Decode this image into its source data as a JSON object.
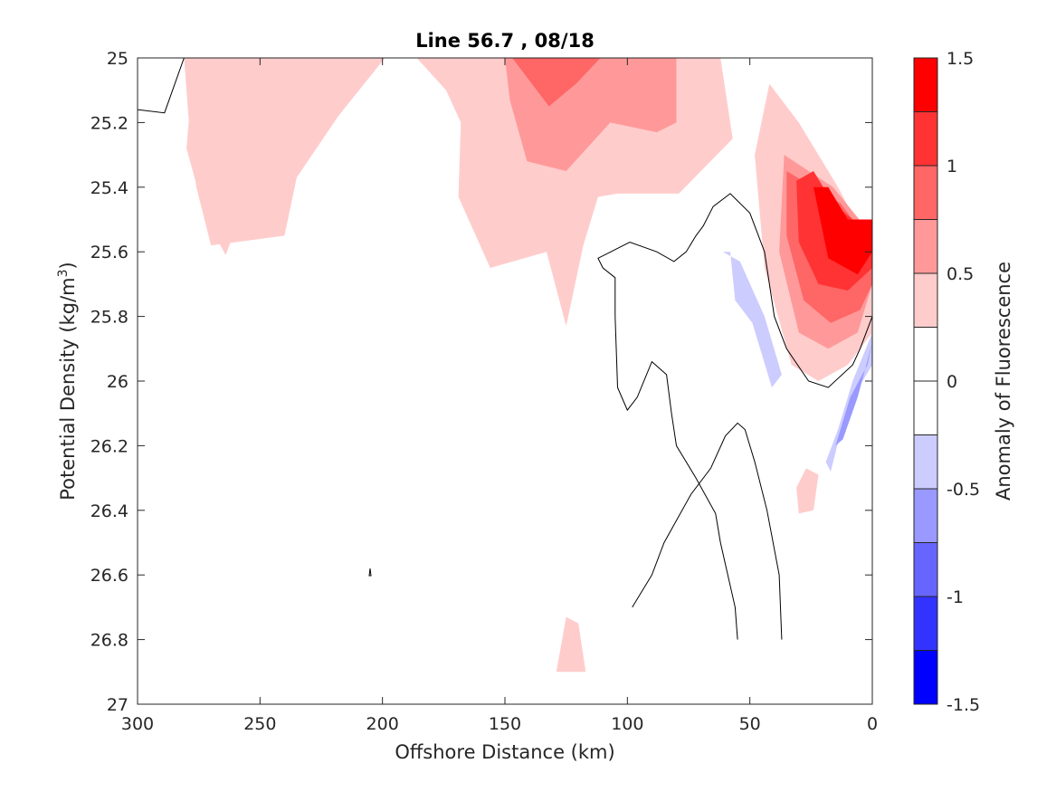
{
  "chart_data": {
    "type": "contour",
    "title": "Line 56.7 , 08/18",
    "xlabel": "Offshore Distance (km)",
    "ylabel_prefix": "Potential Density (kg/m",
    "ylabel_sup": "3",
    "ylabel_suffix": ")",
    "xlim": [
      300,
      0
    ],
    "ylim": [
      25,
      27
    ],
    "x_reversed": true,
    "y_reversed": true,
    "x_ticks": [
      300,
      250,
      200,
      150,
      100,
      50,
      0
    ],
    "x_tick_labels": [
      "300",
      "250",
      "200",
      "150",
      "100",
      "50",
      "0"
    ],
    "y_ticks": [
      25,
      25.2,
      25.4,
      25.6,
      25.8,
      26,
      26.2,
      26.4,
      26.6,
      26.8,
      27
    ],
    "y_tick_labels": [
      "25",
      "25.2",
      "25.4",
      "25.6",
      "25.8",
      "26",
      "26.2",
      "26.4",
      "26.6",
      "26.8",
      "27"
    ],
    "grid": false,
    "colorbar": {
      "label": "Anomaly of Fluorescence",
      "range": [
        -1.5,
        1.5
      ],
      "levels": [
        -1.5,
        -1.25,
        -1.0,
        -0.75,
        -0.5,
        -0.25,
        0,
        0.25,
        0.5,
        0.75,
        1.0,
        1.25,
        1.5
      ],
      "colors": [
        "#0000ff",
        "#3333ff",
        "#6666ff",
        "#9999ff",
        "#ccccff",
        "#ffffff",
        "#ffffff",
        "#ffcccc",
        "#ff9999",
        "#ff6666",
        "#ff3333",
        "#ff0000"
      ],
      "tick_values": [
        1.5,
        1,
        0.5,
        0,
        -0.5,
        -1,
        -1.5
      ],
      "tick_labels": [
        "1.5",
        "1",
        "0.5",
        "0",
        "-0.5",
        "-1",
        "-1.5"
      ]
    },
    "filled_regions": [
      {
        "level": 0.25,
        "color": "#ffcccc",
        "points": [
          [
            281,
            25
          ],
          [
            186,
            25
          ],
          [
            174,
            25.1
          ],
          [
            168,
            25.2
          ],
          [
            169,
            25.43
          ],
          [
            156,
            25.65
          ],
          [
            133,
            25.6
          ],
          [
            125,
            25.83
          ],
          [
            118,
            25.58
          ],
          [
            112,
            25.43
          ],
          [
            104,
            25.42
          ],
          [
            79,
            25.42
          ],
          [
            57,
            25.25
          ],
          [
            62,
            25
          ],
          [
            140,
            25
          ],
          [
            161,
            25
          ],
          [
            199,
            25
          ],
          [
            218,
            25.18
          ],
          [
            235,
            25.37
          ],
          [
            240,
            25.55
          ],
          [
            270,
            25.58
          ],
          [
            276,
            25.4
          ],
          [
            279,
            25.2
          ]
        ]
      },
      {
        "level": 0.25,
        "color": "#ffcccc",
        "points": [
          [
            200,
            25
          ],
          [
            218,
            25
          ],
          [
            222,
            25.2
          ],
          [
            236,
            25.35
          ],
          [
            256,
            25.45
          ],
          [
            264,
            25.61
          ],
          [
            272,
            25.5
          ],
          [
            280,
            25.28
          ],
          [
            278,
            25.1
          ],
          [
            271,
            25.0
          ]
        ]
      },
      {
        "level": 0.25,
        "color": "#ffcccc",
        "points": [
          [
            42,
            25.08
          ],
          [
            48,
            25.3
          ],
          [
            44,
            25.65
          ],
          [
            33,
            25.95
          ],
          [
            22,
            26.0
          ],
          [
            10,
            25.95
          ],
          [
            0,
            25.85
          ],
          [
            0,
            25.6
          ],
          [
            14,
            25.4
          ],
          [
            30,
            25.2
          ]
        ]
      },
      {
        "level": 0.25,
        "color": "#ffcccc",
        "points": [
          [
            125,
            26.73
          ],
          [
            120,
            26.75
          ],
          [
            117,
            26.9
          ],
          [
            129,
            26.9
          ]
        ]
      },
      {
        "level": 0.25,
        "color": "#ffcccc",
        "points": [
          [
            27,
            26.27
          ],
          [
            31,
            26.33
          ],
          [
            30,
            26.41
          ],
          [
            24,
            26.4
          ],
          [
            22,
            26.29
          ]
        ]
      },
      {
        "level": 0.5,
        "color": "#ff9999",
        "points": [
          [
            150,
            25
          ],
          [
            80,
            25
          ],
          [
            80,
            25.2
          ],
          [
            88,
            25.23
          ],
          [
            107,
            25.2
          ],
          [
            125,
            25.35
          ],
          [
            141,
            25.32
          ],
          [
            148,
            25.13
          ]
        ]
      },
      {
        "level": 0.5,
        "color": "#ff9999",
        "points": [
          [
            36,
            25.3
          ],
          [
            38,
            25.6
          ],
          [
            30,
            25.85
          ],
          [
            18,
            25.9
          ],
          [
            6,
            25.85
          ],
          [
            0,
            25.7
          ],
          [
            0,
            25.55
          ],
          [
            16,
            25.4
          ]
        ]
      },
      {
        "level": 0.75,
        "color": "#ff6666",
        "points": [
          [
            147,
            25
          ],
          [
            111,
            25
          ],
          [
            121,
            25.08
          ],
          [
            132,
            25.15
          ]
        ]
      },
      {
        "level": 0.75,
        "color": "#ff6666",
        "points": [
          [
            35,
            25.35
          ],
          [
            35,
            25.55
          ],
          [
            28,
            25.75
          ],
          [
            17,
            25.82
          ],
          [
            5,
            25.78
          ],
          [
            0,
            25.7
          ],
          [
            0,
            25.58
          ],
          [
            13,
            25.45
          ]
        ]
      },
      {
        "level": 1.0,
        "color": "#ff3333",
        "points": [
          [
            31,
            25.38
          ],
          [
            30,
            25.57
          ],
          [
            22,
            25.7
          ],
          [
            10,
            25.72
          ],
          [
            0,
            25.65
          ],
          [
            0,
            25.55
          ],
          [
            16,
            25.45
          ],
          [
            24,
            25.35
          ]
        ]
      },
      {
        "level": 1.25,
        "color": "#ff0000",
        "points": [
          [
            24,
            25.4
          ],
          [
            18,
            25.4
          ],
          [
            10,
            25.5
          ],
          [
            0,
            25.5
          ],
          [
            0,
            25.6
          ],
          [
            6,
            25.67
          ],
          [
            18,
            25.62
          ]
        ]
      },
      {
        "level": -0.25,
        "color": "#ccccff",
        "points": [
          [
            61,
            25.6
          ],
          [
            54,
            25.63
          ],
          [
            44,
            25.8
          ],
          [
            37,
            25.98
          ],
          [
            41,
            26.02
          ],
          [
            49,
            25.82
          ],
          [
            56,
            25.75
          ],
          [
            58,
            25.6
          ]
        ]
      },
      {
        "level": -0.25,
        "color": "#ccccff",
        "points": [
          [
            0,
            25.85
          ],
          [
            8,
            26.0
          ],
          [
            14,
            26.15
          ],
          [
            19,
            26.25
          ],
          [
            17,
            26.28
          ],
          [
            11,
            26.1
          ],
          [
            4,
            26.0
          ],
          [
            0,
            25.95
          ]
        ]
      },
      {
        "level": -0.5,
        "color": "#9999ff",
        "points": [
          [
            0,
            25.88
          ],
          [
            6,
            26.05
          ],
          [
            12,
            26.18
          ],
          [
            15,
            26.2
          ],
          [
            9,
            26.05
          ],
          [
            2,
            25.95
          ]
        ]
      }
    ],
    "contour_lines": [
      {
        "level": 0,
        "points": [
          [
            300,
            25.16
          ],
          [
            289,
            25.17
          ],
          [
            281,
            25.0
          ]
        ]
      },
      {
        "level": 0,
        "points": [
          [
            55,
            26.8
          ],
          [
            56,
            26.7
          ],
          [
            62,
            26.5
          ],
          [
            64,
            26.41
          ],
          [
            72,
            26.3
          ],
          [
            80,
            26.2
          ],
          [
            82,
            26.1
          ],
          [
            84,
            25.98
          ],
          [
            90,
            25.94
          ],
          [
            96,
            26.05
          ],
          [
            100,
            26.09
          ],
          [
            104,
            26.02
          ],
          [
            105,
            25.8
          ],
          [
            105,
            25.68
          ],
          [
            110,
            25.65
          ],
          [
            112,
            25.62
          ],
          [
            99,
            25.57
          ],
          [
            88,
            25.6
          ],
          [
            81,
            25.63
          ],
          [
            76,
            25.6
          ],
          [
            72,
            25.55
          ],
          [
            69,
            25.52
          ],
          [
            65,
            25.46
          ],
          [
            58,
            25.42
          ],
          [
            50,
            25.48
          ],
          [
            44,
            25.6
          ],
          [
            42,
            25.7
          ],
          [
            40,
            25.8
          ],
          [
            35,
            25.9
          ],
          [
            26,
            26.0
          ],
          [
            18,
            26.02
          ],
          [
            8,
            25.95
          ],
          [
            5,
            25.9
          ],
          [
            0,
            25.8
          ]
        ]
      },
      {
        "level": 0,
        "points": [
          [
            37,
            26.8
          ],
          [
            38,
            26.6
          ],
          [
            43,
            26.4
          ],
          [
            48,
            26.25
          ],
          [
            52,
            26.15
          ],
          [
            55,
            26.13
          ],
          [
            60,
            26.17
          ],
          [
            66,
            26.27
          ],
          [
            74,
            26.35
          ],
          [
            85,
            26.5
          ],
          [
            90,
            26.6
          ],
          [
            98,
            26.7
          ]
        ]
      }
    ]
  }
}
